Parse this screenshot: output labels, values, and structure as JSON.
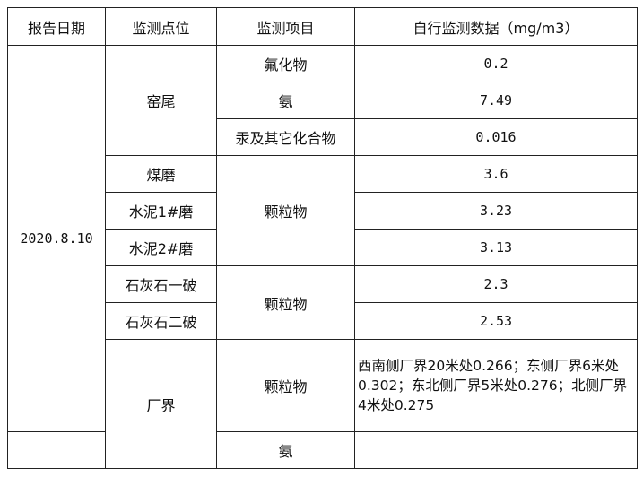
{
  "headers": [
    "报告日期",
    "监测点位",
    "监测项目",
    "自行监测数据（mg/m3）"
  ],
  "date": "2020.8.10",
  "groups": {
    "kiln_tail": {
      "site": "窑尾",
      "items": [
        {
          "item": "氟化物",
          "value": "0.2"
        },
        {
          "item": "氨",
          "value": "7.49"
        },
        {
          "item": "汞及其它化合物",
          "value": "0.016"
        }
      ]
    },
    "mills": {
      "item": "颗粒物",
      "rows": [
        {
          "site": "煤磨",
          "value": "3.6"
        },
        {
          "site": "水泥1#磨",
          "value": "3.23"
        },
        {
          "site": "水泥2#磨",
          "value": "3.13"
        }
      ]
    },
    "limestone": {
      "item": "颗粒物",
      "rows": [
        {
          "site": "石灰石一破",
          "value": "2.3"
        },
        {
          "site": "石灰石二破",
          "value": "2.53"
        }
      ]
    },
    "boundary": {
      "site": "厂界",
      "items": [
        {
          "item": "颗粒物",
          "value": "西南侧厂界20米处0.266；东侧厂界6米处0.302；东北侧厂界5米处0.276；北侧厂界4米处0.275"
        },
        {
          "item": "氨",
          "value": ""
        }
      ]
    }
  }
}
